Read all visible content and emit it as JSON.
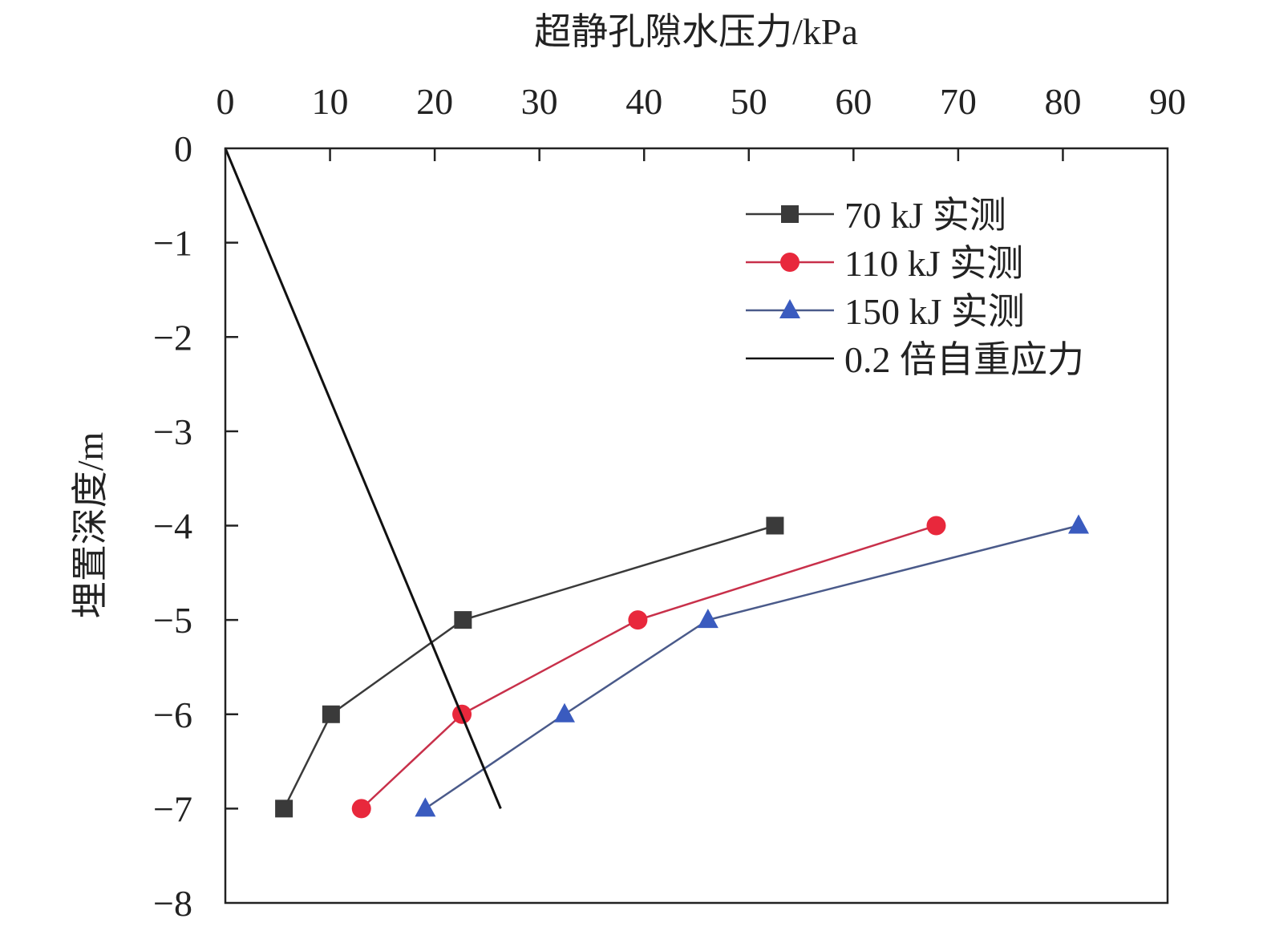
{
  "chart_data": {
    "type": "line",
    "title": "",
    "xlabel": "超静孔隙水压力/kPa",
    "ylabel": "埋置深度/m",
    "xlim": [
      0,
      90
    ],
    "ylim": [
      -8,
      0
    ],
    "x_ticks": [
      "0",
      "10",
      "20",
      "30",
      "40",
      "50",
      "60",
      "70",
      "80",
      "90"
    ],
    "x_tick_values": [
      0,
      10,
      20,
      30,
      40,
      50,
      60,
      70,
      80,
      90
    ],
    "y_ticks": [
      "0",
      "−1",
      "−2",
      "−3",
      "−4",
      "−5",
      "−6",
      "−7",
      "−8"
    ],
    "y_tick_values": [
      0,
      -1,
      -2,
      -3,
      -4,
      -5,
      -6,
      -7,
      -8
    ],
    "x_axis_position": "top",
    "grid": false,
    "legend_position": "top-right",
    "series": [
      {
        "name": "70 kJ 实测",
        "marker": "square",
        "color": "#3a3a3a",
        "line_color": "#3a3a3a",
        "x": [
          52.5,
          22.7,
          10.1,
          5.6
        ],
        "y": [
          -4,
          -5,
          -6,
          -7
        ]
      },
      {
        "name": "110 kJ 实测",
        "marker": "circle",
        "color": "#e8283c",
        "line_color": "#c8304a",
        "x": [
          67.9,
          39.4,
          22.6,
          13.0
        ],
        "y": [
          -4,
          -5,
          -6,
          -7
        ]
      },
      {
        "name": "150 kJ 实测",
        "marker": "triangle",
        "color": "#3a5bbf",
        "line_color": "#4a5a8a",
        "x": [
          81.5,
          46.1,
          32.4,
          19.1
        ],
        "y": [
          -4,
          -5,
          -6,
          -7
        ]
      },
      {
        "name": "0.2 倍自重应力",
        "marker": "none",
        "color": "#111111",
        "line_color": "#111111",
        "x": [
          0,
          26.3
        ],
        "y": [
          0,
          -7
        ]
      }
    ]
  }
}
